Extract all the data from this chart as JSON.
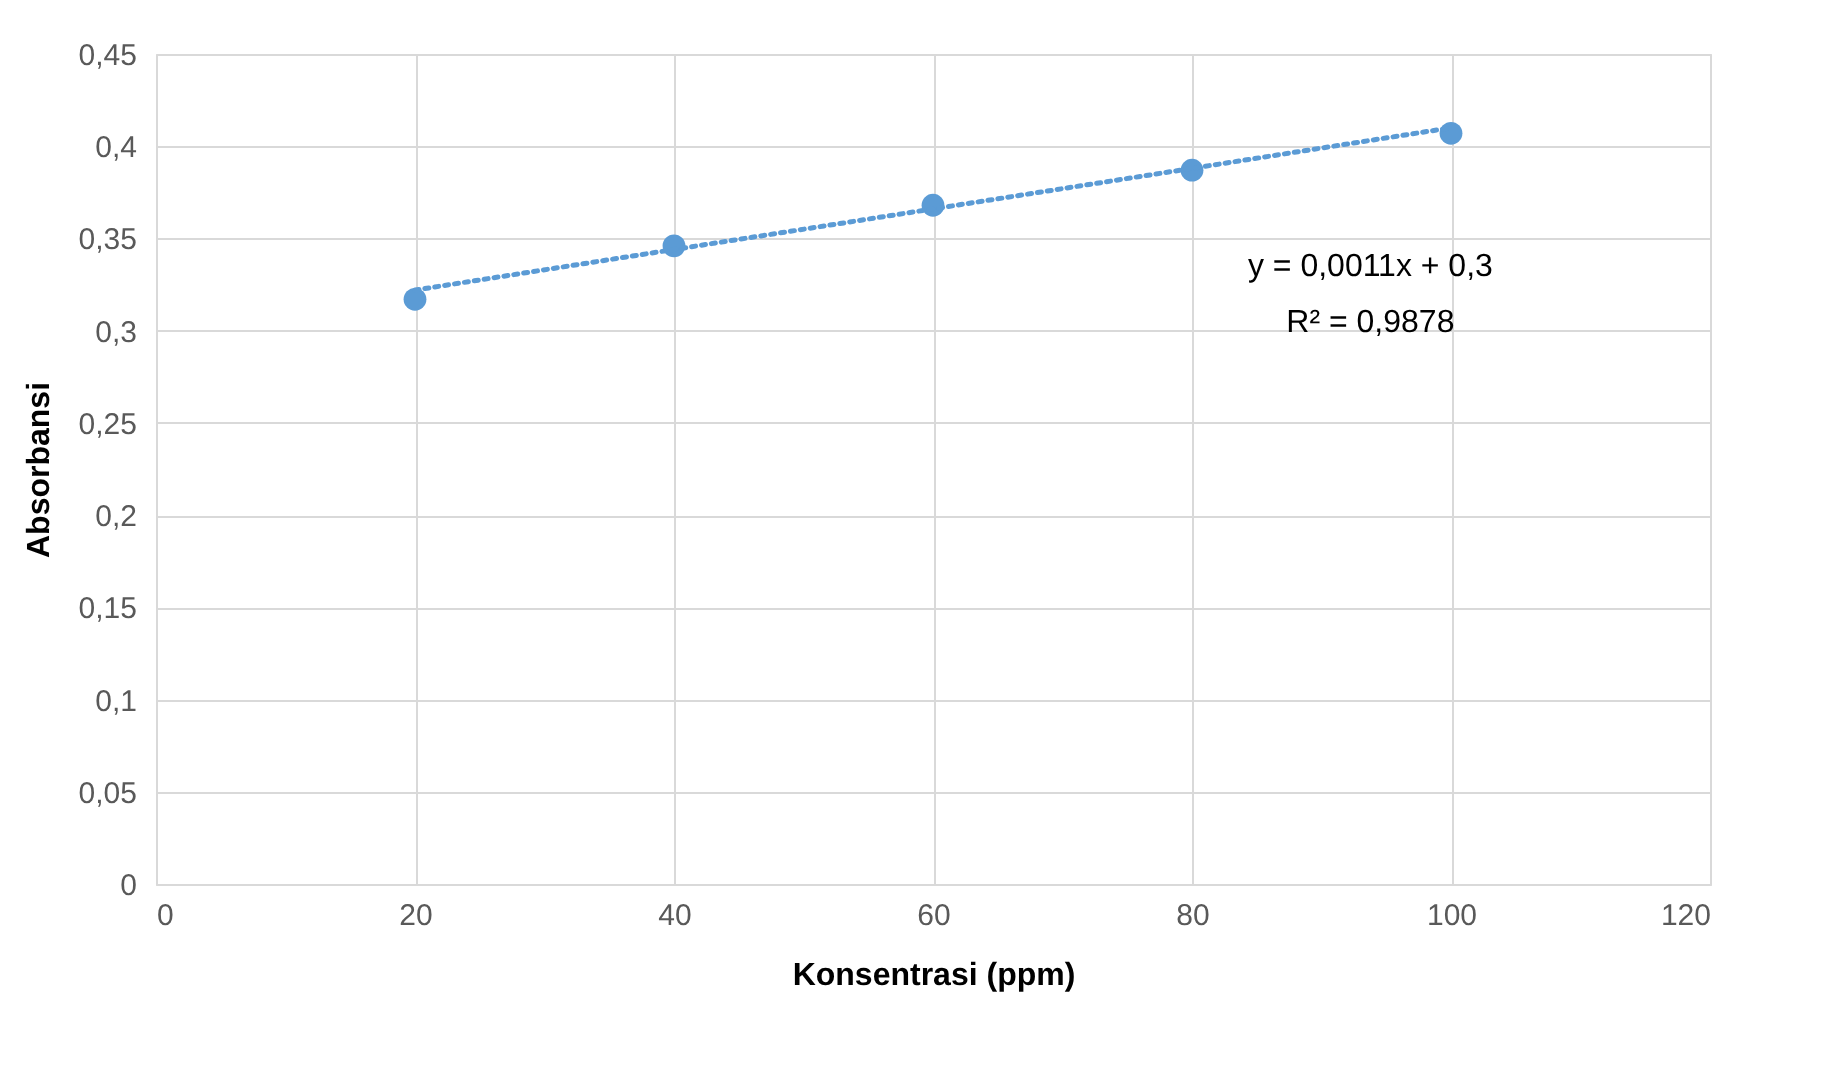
{
  "chart_data": {
    "type": "scatter",
    "xlabel": "Konsentrasi  (ppm)",
    "ylabel": "Absorbansi",
    "x": [
      20,
      40,
      60,
      80,
      100
    ],
    "series": [
      {
        "color": "#5b9bd5",
        "values": [
          0.317,
          0.346,
          0.368,
          0.387,
          0.407
        ],
        "marker": "circle"
      },
      {
        "type": "line",
        "color": "#5b9bd5",
        "x": [
          20,
          100
        ],
        "values": [
          0.322,
          0.41
        ],
        "line_style": "dotted",
        "marker": "none"
      }
    ],
    "xlim": [
      0,
      120
    ],
    "xticks": [
      0,
      20,
      40,
      60,
      80,
      100,
      120
    ],
    "ylim": [
      0,
      0.45
    ],
    "yticks": [
      0,
      {
        "value": 0.05,
        "label": "0,05"
      },
      {
        "value": 0.1,
        "label": "0,1"
      },
      {
        "value": 0.15,
        "label": "0,15"
      },
      {
        "value": 0.2,
        "label": "0,2"
      },
      {
        "value": 0.25,
        "label": "0,25"
      },
      {
        "value": 0.3,
        "label": "0,3"
      },
      {
        "value": 0.35,
        "label": "0,35"
      },
      {
        "value": 0.4,
        "label": "0,4"
      },
      {
        "value": 0.45,
        "label": "0,45"
      }
    ],
    "annotations": [
      "y = 0,0011x + 0,3",
      "R² = 0,9878"
    ],
    "grid": true
  }
}
